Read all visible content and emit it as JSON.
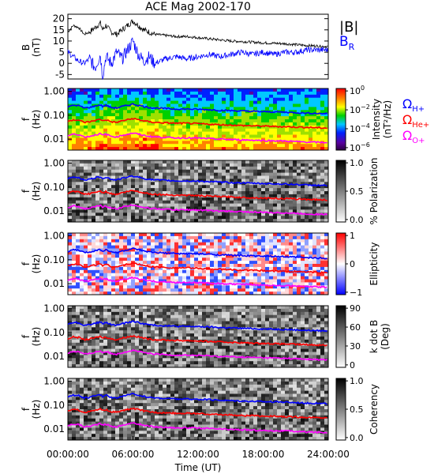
{
  "chart_data": [
    {
      "type": "line",
      "title": "ACE Mag 2002-170",
      "ylabel_line1": "B",
      "ylabel_line2": "(nT)",
      "y_ticks": [
        "20",
        "15",
        "10",
        "5",
        "0",
        "-5"
      ],
      "y_tick_values": [
        20,
        15,
        10,
        5,
        0,
        -5
      ],
      "ylim": [
        -7,
        22
      ],
      "xlim_hours": [
        0,
        24
      ],
      "series": [
        {
          "name": "|B|",
          "color": "#000000",
          "x_hours": [
            0,
            0.5,
            1,
            1.5,
            2,
            2.5,
            3,
            3.2,
            3.5,
            4,
            4.5,
            5,
            5.5,
            6,
            6.5,
            7,
            7.5,
            8,
            9,
            10,
            11,
            12,
            13,
            14,
            15,
            16,
            17,
            18,
            19,
            20,
            21,
            22,
            23,
            24
          ],
          "values": [
            14,
            17,
            16,
            13,
            14,
            16,
            18,
            15,
            17,
            14,
            13,
            15,
            17,
            19,
            17,
            15,
            14,
            13,
            12.5,
            12,
            12,
            11.5,
            11,
            10.5,
            10,
            9.8,
            9.5,
            9.2,
            9,
            8.8,
            8.4,
            8,
            7.8,
            7.5
          ]
        },
        {
          "name": "BR",
          "color": "#0000ff",
          "x_hours": [
            0,
            0.5,
            1,
            1.5,
            2,
            2.5,
            3,
            3.2,
            3.5,
            4,
            4.5,
            5,
            5.5,
            6,
            6.5,
            7,
            7.5,
            8,
            9,
            10,
            11,
            12,
            13,
            14,
            15,
            16,
            17,
            18,
            19,
            20,
            21,
            22,
            23,
            24
          ],
          "values": [
            5,
            3,
            1,
            0,
            2,
            -2,
            4,
            -6,
            3,
            0,
            5,
            2,
            6,
            10,
            4,
            1,
            3,
            0,
            2,
            3,
            2,
            3,
            4,
            3,
            4,
            5,
            4,
            5,
            4,
            5,
            5,
            6,
            6,
            6
          ]
        }
      ],
      "legend": [
        "|B|",
        "B",
        "R"
      ]
    },
    {
      "type": "heatmap",
      "ylabel_line1": "f",
      "ylabel_line2": "(Hz)",
      "y_ticks": [
        "1.00",
        "0.10",
        "0.01"
      ],
      "colorbar": {
        "label": "Intensity",
        "unit": "(nT²/Hz)",
        "ticks": [
          "10",
          "10",
          "10",
          "10"
        ],
        "exponents": [
          "0",
          "−2",
          "−4",
          "−6"
        ]
      },
      "gyrofrequency_legend": [
        {
          "symbol": "Ω",
          "sub": "H+",
          "color": "#0000ff"
        },
        {
          "symbol": "Ω",
          "sub": "He+",
          "color": "#ff0000"
        },
        {
          "symbol": "Ω",
          "sub": "O+",
          "color": "#ff00ff"
        }
      ]
    },
    {
      "type": "heatmap",
      "ylabel_line1": "f",
      "ylabel_line2": "(Hz)",
      "y_ticks": [
        "1.00",
        "0.10",
        "0.01"
      ],
      "colorbar": {
        "label": "% Polarization",
        "ticks": [
          "1.0",
          "0.5",
          "0.0"
        ]
      }
    },
    {
      "type": "heatmap",
      "ylabel_line1": "f",
      "ylabel_line2": "(Hz)",
      "y_ticks": [
        "1.00",
        "0.10",
        "0.01"
      ],
      "colorbar": {
        "label": "Ellipticity",
        "ticks": [
          "1",
          "0",
          "−1"
        ]
      }
    },
    {
      "type": "heatmap",
      "ylabel_line1": "f",
      "ylabel_line2": "(Hz)",
      "y_ticks": [
        "1.00",
        "0.10",
        "0.01"
      ],
      "colorbar": {
        "label": "k dot B",
        "unit": "(Deg)",
        "ticks": [
          "90",
          "60",
          "30",
          "0"
        ]
      }
    },
    {
      "type": "heatmap",
      "ylabel_line1": "f",
      "ylabel_line2": "(Hz)",
      "y_ticks": [
        "1.00",
        "0.10",
        "0.01"
      ],
      "colorbar": {
        "label": "Coherency",
        "ticks": [
          "1.0",
          "0.5",
          "0.0"
        ]
      }
    }
  ],
  "gyro_curves": {
    "x_hours": [
      0,
      0.5,
      1,
      1.5,
      2,
      2.5,
      3,
      3.2,
      3.5,
      4,
      4.5,
      5,
      5.5,
      6,
      6.5,
      7,
      7.5,
      8,
      9,
      10,
      11,
      12,
      13,
      14,
      15,
      16,
      17,
      18,
      19,
      20,
      21,
      22,
      23,
      24
    ],
    "H+": [
      0.22,
      0.26,
      0.25,
      0.2,
      0.21,
      0.24,
      0.27,
      0.23,
      0.26,
      0.21,
      0.2,
      0.23,
      0.26,
      0.29,
      0.26,
      0.23,
      0.21,
      0.2,
      0.19,
      0.18,
      0.18,
      0.175,
      0.17,
      0.16,
      0.155,
      0.15,
      0.145,
      0.14,
      0.137,
      0.134,
      0.128,
      0.122,
      0.119,
      0.115
    ],
    "He+": [
      0.055,
      0.065,
      0.062,
      0.05,
      0.053,
      0.06,
      0.068,
      0.058,
      0.065,
      0.053,
      0.05,
      0.058,
      0.065,
      0.072,
      0.065,
      0.058,
      0.053,
      0.05,
      0.048,
      0.046,
      0.046,
      0.044,
      0.042,
      0.04,
      0.039,
      0.037,
      0.036,
      0.035,
      0.034,
      0.033,
      0.032,
      0.031,
      0.03,
      0.029
    ],
    "O+": [
      0.0138,
      0.0162,
      0.0156,
      0.0125,
      0.0131,
      0.015,
      0.0169,
      0.0144,
      0.0162,
      0.0131,
      0.0125,
      0.0144,
      0.0162,
      0.018,
      0.0162,
      0.0144,
      0.0131,
      0.0125,
      0.0119,
      0.0113,
      0.0113,
      0.011,
      0.0106,
      0.01,
      0.0097,
      0.0094,
      0.0091,
      0.0088,
      0.0086,
      0.0084,
      0.008,
      0.0076,
      0.0074,
      0.0072
    ]
  },
  "x_axis": {
    "ticks": [
      "00:00:00",
      "06:00:00",
      "12:00:00",
      "18:00:00",
      "24:00:00"
    ],
    "tick_hours": [
      0,
      6,
      12,
      18,
      24
    ],
    "label": "Time (UT)"
  }
}
